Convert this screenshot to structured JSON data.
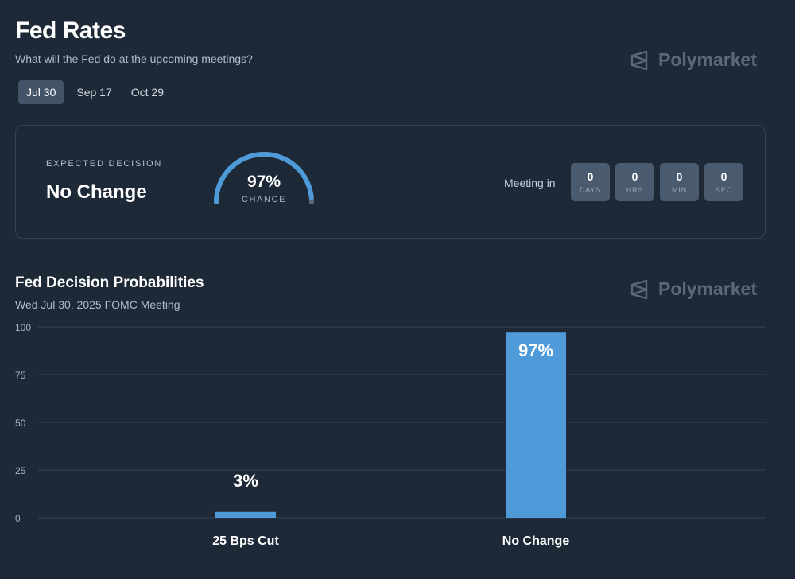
{
  "header": {
    "title": "Fed Rates",
    "subtitle": "What will the Fed do at the upcoming meetings?",
    "brand": "Polymarket"
  },
  "tabs": [
    {
      "label": "Jul 30",
      "active": true
    },
    {
      "label": "Sep 17",
      "active": false
    },
    {
      "label": "Oct 29",
      "active": false
    }
  ],
  "decision_card": {
    "label": "EXPECTED DECISION",
    "value": "No Change",
    "gauge_percent": "97%",
    "gauge_fraction": 0.97,
    "gauge_sub": "CHANCE",
    "meeting_label": "Meeting in",
    "countdown": [
      {
        "value": "0",
        "unit": "DAYS"
      },
      {
        "value": "0",
        "unit": "HRS"
      },
      {
        "value": "0",
        "unit": "MIN"
      },
      {
        "value": "0",
        "unit": "SEC"
      }
    ]
  },
  "chart_section": {
    "title": "Fed Decision Probabilities",
    "subtitle": "Wed Jul 30, 2025 FOMC Meeting",
    "brand": "Polymarket"
  },
  "colors": {
    "background": "#1e2938",
    "accent": "#4f9bd9",
    "gauge_track": "#5b6879",
    "grid": "#334254"
  },
  "chart_data": {
    "type": "bar",
    "categories": [
      "25 Bps Cut",
      "No Change"
    ],
    "values": [
      3,
      97
    ],
    "data_labels": [
      "3%",
      "97%"
    ],
    "yticks": [
      0,
      25,
      50,
      75,
      100
    ],
    "ylim": [
      0,
      100
    ],
    "grid": true,
    "title": "Fed Decision Probabilities",
    "subtitle": "Wed Jul 30, 2025 FOMC Meeting"
  }
}
